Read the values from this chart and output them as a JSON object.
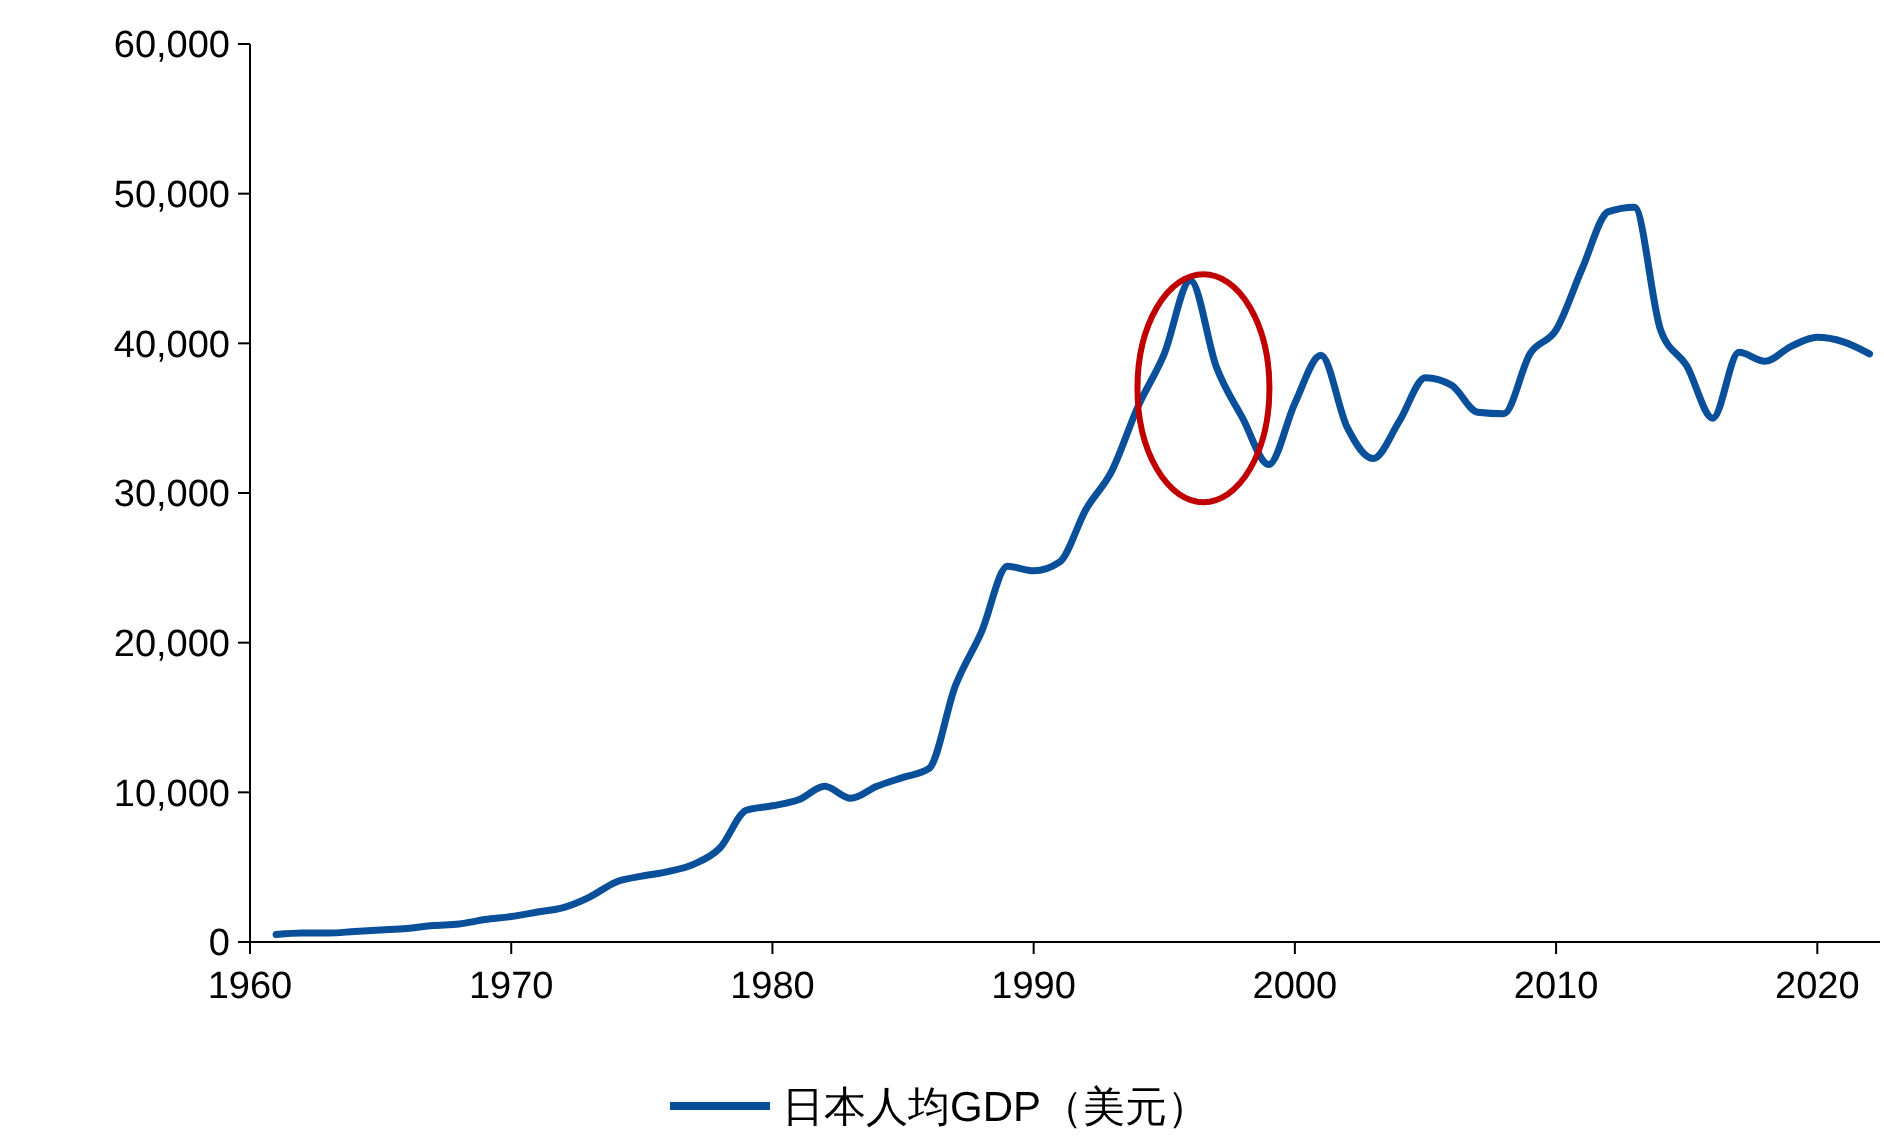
{
  "chart_data": {
    "type": "line",
    "x": [
      1961,
      1962,
      1963,
      1964,
      1965,
      1966,
      1967,
      1968,
      1969,
      1970,
      1971,
      1972,
      1973,
      1974,
      1975,
      1976,
      1977,
      1978,
      1979,
      1980,
      1981,
      1982,
      1983,
      1984,
      1985,
      1986,
      1987,
      1988,
      1989,
      1990,
      1991,
      1992,
      1993,
      1994,
      1995,
      1996,
      1997,
      1998,
      1999,
      2000,
      2001,
      2002,
      2003,
      2004,
      2005,
      2006,
      2007,
      2008,
      2009,
      2010,
      2011,
      2012,
      2013,
      2014,
      2015,
      2016,
      2017,
      2018,
      2019,
      2020,
      2021,
      2022
    ],
    "series": [
      {
        "name": "日本人均GDP（美元）",
        "color": "#0a4f9a",
        "values": [
          500,
          600,
          600,
          700,
          800,
          900,
          1100,
          1200,
          1500,
          1700,
          2000,
          2300,
          3000,
          4000,
          4400,
          4700,
          5200,
          6300,
          8800,
          9100,
          9500,
          10400,
          9600,
          10400,
          11000,
          11600,
          17100,
          20700,
          25100,
          24800,
          25400,
          28900,
          31500,
          35800,
          39300,
          44200,
          38400,
          35000,
          31900,
          36000,
          39200,
          34400,
          32300,
          34800,
          37700,
          37200,
          35400,
          35300,
          39300,
          40900,
          45000,
          48800,
          49100,
          40900,
          38500,
          35000,
          39400,
          38800,
          39800,
          40400,
          40100,
          39300
        ]
      }
    ],
    "xlim": [
      1960,
      2022.4
    ],
    "xticks": [
      1960,
      1970,
      1980,
      1990,
      2000,
      2010,
      2020
    ],
    "ylim": [
      0,
      60000
    ],
    "yticks": [
      {
        "value": 0,
        "label": "0"
      },
      {
        "value": 10000,
        "label": "10,000"
      },
      {
        "value": 20000,
        "label": "20,000"
      },
      {
        "value": 30000,
        "label": "30,000"
      },
      {
        "value": 40000,
        "label": "40,000"
      },
      {
        "value": 50000,
        "label": "50,000"
      },
      {
        "value": 60000,
        "label": "60,000"
      }
    ],
    "grid": false,
    "legend": "bottom",
    "marker": "none",
    "line_style": "solid"
  }
}
